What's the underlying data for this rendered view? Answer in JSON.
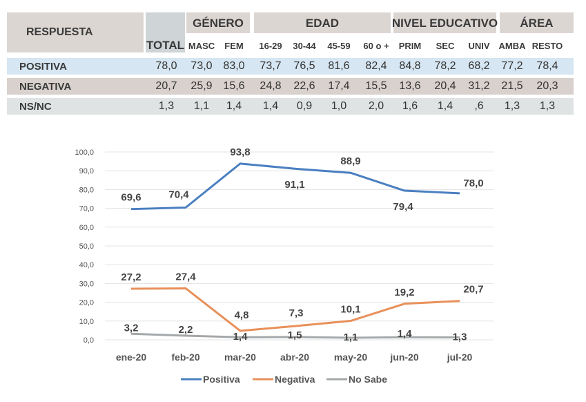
{
  "table": {
    "respuesta_header": "RESPUESTA",
    "total_header": "TOTAL",
    "groups": [
      {
        "label": "GÉNERO",
        "columns": [
          "MASC",
          "FEM"
        ]
      },
      {
        "label": "EDAD",
        "columns": [
          "16-29",
          "30-44",
          "45-59",
          "60 o +"
        ]
      },
      {
        "label": "NIVEL EDUCATIVO",
        "columns": [
          "PRIM",
          "SEC",
          "UNIV"
        ]
      },
      {
        "label": "ÁREA",
        "columns": [
          "AMBA",
          "RESTO"
        ]
      }
    ],
    "rows": [
      {
        "label": "POSITIVA",
        "values": [
          "78,0",
          "73,0",
          "83,0",
          "73,7",
          "76,5",
          "81,6",
          "82,4",
          "84,8",
          "78,2",
          "68,2",
          "77,2",
          "78,4"
        ]
      },
      {
        "label": "NEGATIVA",
        "values": [
          "20,7",
          "25,9",
          "15,6",
          "24,8",
          "22,6",
          "17,4",
          "15,5",
          "13,6",
          "20,4",
          "31,2",
          "21,5",
          "20,3"
        ]
      },
      {
        "label": "NS/NC",
        "values": [
          "1,3",
          "1,1",
          "1,4",
          "1,4",
          "0,9",
          "1,0",
          "2,0",
          "1,6",
          "1,4",
          ",6",
          "1,3",
          "1,3"
        ]
      }
    ],
    "row_colors": [
      "#d6e6f2",
      "#d9d1cd",
      "#dfe3e4"
    ]
  },
  "chart_data": {
    "type": "line",
    "categories": [
      "ene-20",
      "feb-20",
      "mar-20",
      "abr-20",
      "may-20",
      "jun-20",
      "jul-20"
    ],
    "ylim": [
      0,
      100
    ],
    "yticks": [
      "0,0",
      "10,0",
      "20,0",
      "30,0",
      "40,0",
      "50,0",
      "60,0",
      "70,0",
      "80,0",
      "90,0",
      "100,0"
    ],
    "grid": true,
    "legend_position": "bottom",
    "series": [
      {
        "name": "Positiva",
        "color": "#4a7fc1",
        "values": [
          69.6,
          70.4,
          93.8,
          91.1,
          88.9,
          79.4,
          78.0
        ],
        "labels": [
          "69,6",
          "70,4",
          "93,8",
          "91,1",
          "88,9",
          "79,4",
          "78,0"
        ]
      },
      {
        "name": "Negativa",
        "color": "#e8905a",
        "values": [
          27.2,
          27.4,
          4.8,
          7.3,
          10.1,
          19.2,
          20.7
        ],
        "labels": [
          "27,2",
          "27,4",
          "4,8",
          "7,3",
          "10,1",
          "19,2",
          "20,7"
        ]
      },
      {
        "name": "No Sabe",
        "color": "#a5a8aa",
        "values": [
          3.2,
          2.2,
          1.4,
          1.5,
          1.1,
          1.4,
          1.3
        ],
        "labels": [
          "3,2",
          "2,2",
          "1,4",
          "1,5",
          "1,1",
          "1,4",
          "1,3"
        ]
      }
    ]
  }
}
